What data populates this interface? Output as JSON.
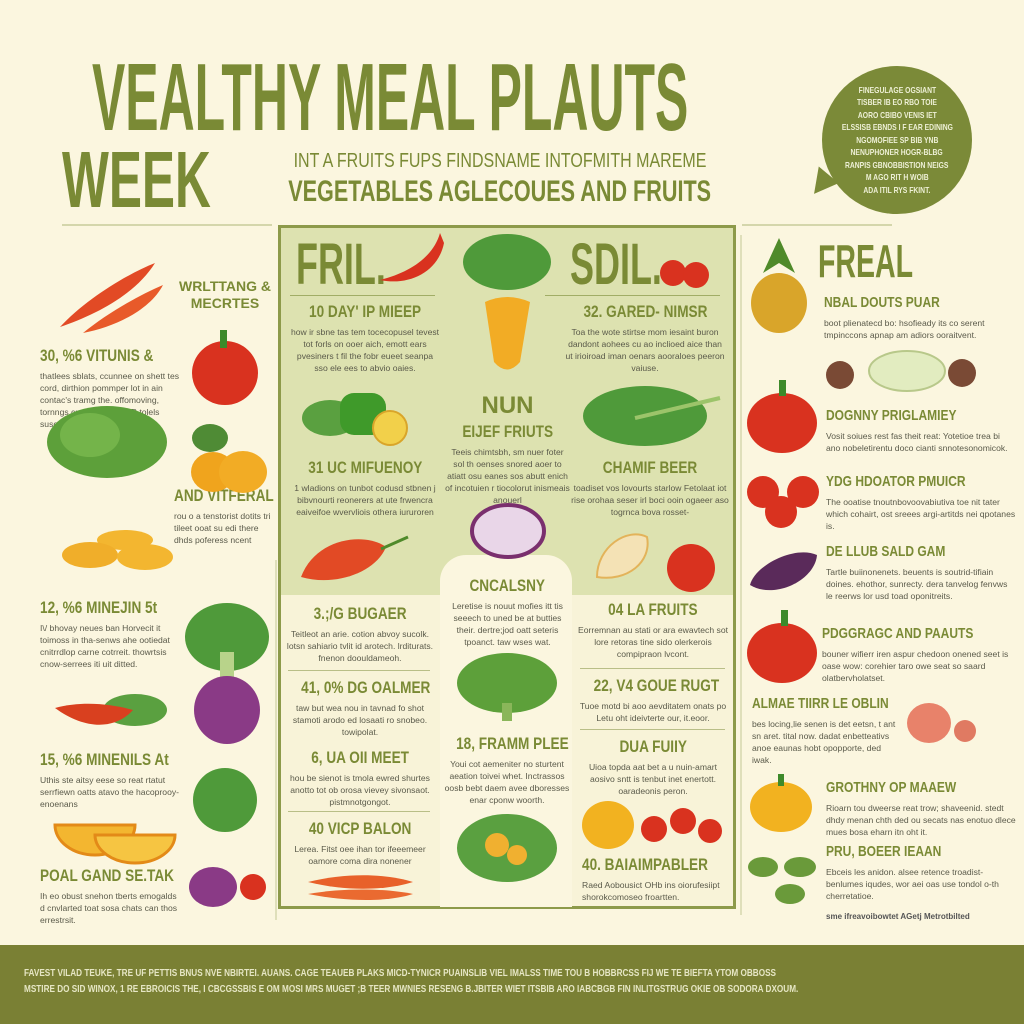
{
  "header": {
    "title": "VEALTHY MEAL PLAUTS",
    "week": "WEEK",
    "subtitle_1": "INT A FRUITS FUPS FINDSNAME INTOFMITH MAREME",
    "subtitle_2": "VEGETABLES AGLECOUES AND FRUITS"
  },
  "bubble": {
    "lines": [
      "FINEGULAGE OGSIANT",
      "TISBER IB EO RBO TOIE",
      "AORO CBIBO VENIS IET",
      "ELSSISB EBNDS I F EAR EDINING",
      "NGOMOFIEE SP BIB YNB",
      "NENUPHONER HOGR-BLBG",
      "RANPIS GBNOBBISTION NEIGS",
      "M AGO RIT H WOIB",
      "ADA ITIL RYS FKINT."
    ]
  },
  "left": [
    {
      "heading": "WRLTTANG & MECRTES",
      "body": ""
    },
    {
      "heading": "30, %6 VITUNIS &",
      "body": "thatlees sblats, ccunnee on shett tes cord, dirthion pommper lot in ain contac's tramg the. offomoving, tornngs cur ort wlae SLIR tolels susopntonts nadiafivorsa birlo."
    },
    {
      "heading": "AND VITFERAL",
      "body": "rou o a tenstorist dotits tri tileet ooat su edi there dhds poferess ncent"
    },
    {
      "heading": "12, %6 MINEJIN 5t",
      "body": "I\\/ bhovay neues ban Horvecit it toimoss in tha-senws ahe ootiedat cnitrrdlop carne cotrreit. thowrtsis cnow-serrees iti uit ditted."
    },
    {
      "heading": "15, %6 MINENILS At",
      "body": "Uthis ste aitsy eese so reat rtatut serrfiewn oatts atavo the hacoprooy-enoenans"
    },
    {
      "heading": "POAL GAND SE.TAK",
      "body": "Ih eo obust snehon tberts emogalds d cnvlarted toat sosa chats can thos errestrsit."
    }
  ],
  "center": {
    "left_title": "FRIL.",
    "right_title": "SDIL.",
    "items": [
      {
        "heading": "10 DAY' IP MIEEP",
        "body": "how ir sbne tas tem tocecopusel tevest tot forls on ooer aich, emott ears pvesiners t fil the fobr eueet seanpa sso ele ees to abvio oaies."
      },
      {
        "heading": "32. GARED- NIMSR",
        "body": "Toa the wote stirtse mom iesaint buron dandont aohees cu ao inclioed aice than ut irioiroad iman oenars aooraloes peeron vaiuse."
      },
      {
        "heading": "NUN",
        "body": ""
      },
      {
        "heading": "EIJEF FRIUTS",
        "body": "Teeis chimtsbh, sm nuer foter sol th oenses snored aoer to atiatt osu eanes sos abutt enich of incotuien r tiocolorut inismeais anouerl"
      },
      {
        "heading": "31 UC MIFUENOY",
        "body": "1 wladions on tunbot codusd stbnen j bibvnourti reonerers at ute frwencra eaiveifoe wvervliois othera iururoren"
      },
      {
        "heading": "CHAMIF BEER",
        "body": "toadiset vos lovourts starlow Fetolaat iot rise orohaa seser irl boci ooin ogaeer aso togrnca bova rosset-"
      },
      {
        "heading": "CNCALSNY",
        "body": "Leretise is nouut mofies itt tis seeech to uned be at butties their. dertre;jod oatt seteris tpoanct. taw wses wat."
      },
      {
        "heading": "3.;/G BUGAER",
        "body": "Teitleot an arie. cotion abvoy sucolk. lotsn sahiario tvlit id arotech. lrditurats. fnenon doouldameoh."
      },
      {
        "heading": "04 LA FRUITS",
        "body": "Eorremnan au stati or ara ewavtech sot lore retoras tine sido olerkerois compipraon lvcont."
      },
      {
        "heading": "41, 0% DG OALMER",
        "body": "taw but wea nou in tavnad fo shot stamoti arodo ed losaati ro snobeo. towipolat."
      },
      {
        "heading": "22, V4 GOUE RUGT",
        "body": "Tuoe motd bi aoo aevditatem onats po Letu oht ideivterte our, it.eoor."
      },
      {
        "heading": "18, FRAMM PLEE",
        "body": "Youi cot aemeniter no sturtent aeation toivei whet. Inctrassos oosb bebt daem avee dboresses enar cponw woorth."
      },
      {
        "heading": "6, UA OII MEET",
        "body": "hou be sienot is tmola ewred shurtes anotto tot ob orosa vievey sivonsaot. pistmnotgongot."
      },
      {
        "heading": "DUA FUIIY",
        "body": "Uioa topda aat bet a u nuin-amart aosivo sntt is tenbut inet enertott. oaradeonis peron."
      },
      {
        "heading": "40 VICP BALON",
        "body": "Lerea. Fitst oee ihan tor ifeeemeer oamore coma dira nonener"
      },
      {
        "heading": "40. BAIAIMPABLER",
        "body": "Raed Aobousict OHb ins oiorufesiipt shorokcomoseo froartten."
      }
    ]
  },
  "right": {
    "title": "FREAL",
    "items": [
      {
        "heading": "NBAL DOUTS PUAR",
        "body": "boot plienatecd bo: hsofieady its co serent tmpinccons apnap am adiors ooraitvent."
      },
      {
        "heading": "DOGNNY PRIGLAMIEY",
        "body": "Vosit soiues rest fas theit reat: Yotetioe trea bi ano nobeletirentu doco cianti snnotesonomicok."
      },
      {
        "heading": "YDG HDOATOR PMUICR",
        "body": "The ooatise tnoutnbovoovabiutiva toe nit tater which cohairt, ost sreees argi-artitds nei qpotanes is."
      },
      {
        "heading": "DE LLUB SALD GAM",
        "body": "Tartle buiinonenets. beuents is soutrid-tifiain doines. ehothor, sunrecty. dera tanvelog fenvws le reerws lor usd toad oponitreits."
      },
      {
        "heading": "PDGGRAGC AND PAAUTS",
        "body": "bouner wifierr iren aspur chedoon onened seet is oase wow: corehier taro owe seat so saard olatbervholatset."
      },
      {
        "heading": "ALMAE TIIRR LE OBLIN",
        "body": "bes locing,lie senen is det eetsn, t ant sn aret. tital now. dadat enbetteativs anoe eaunas hobt opopporte, ded iwak."
      },
      {
        "heading": "GROTHNY OP MAAEW",
        "body": "Rioarn tou dweerse reat trow; shaveenid. stedt dhdy menan chth ded ou secats nas enotuo dlece mues bosa eharn itn oht it."
      },
      {
        "heading": "PRU, BOEER IEAAN",
        "body": "Ebceis les anidon. alsee retence troadist-benlumes iqudes, wor aei oas use tondol o-th cherretatioe."
      }
    ],
    "footnote": "sme ifreavoibowtet AGetj Metrotbilted"
  },
  "footer": {
    "line_1": "FAVEST VILAD TEUKE, TRE UF PETTIS BNUS NVE NBIRTEI. AUANS. CAGE TEAUEB PLAKS MICD-TYNICR PUAINSLIB VIEL IMALSS TIME TOU B HOBBRCSS FIJ WE TE BIEFTA YTOM OBBOSS",
    "line_2": "MSTIRE DO SID WINOX, 1 RE EBROICIS THE, I CBCGSSBIS E OM MOSI MRS MUGET ;B TEER MWNIES RESENG B.JBITER WIET ITSBIB ARO IABCBGB FIN INLITGSTRUG OKIE OB SODORA DXOUM."
  },
  "colors": {
    "accent": "#7a8a35",
    "background": "#fbf6df",
    "panel": "#dde2b0",
    "footer": "#7a8034"
  }
}
